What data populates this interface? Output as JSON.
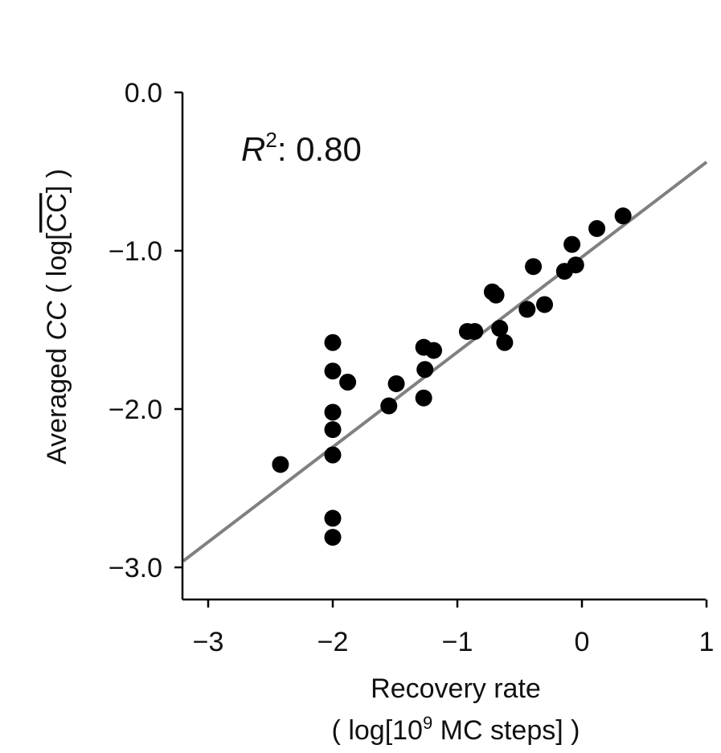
{
  "chart_data": {
    "type": "scatter",
    "xlabel_line1": "Recovery rate",
    "xlabel_line2_prefix": "( log[10",
    "xlabel_line2_sup": "9",
    "xlabel_line2_suffix": " MC steps] )",
    "ylabel_prefix": "Averaged ",
    "ylabel_italic": "CC",
    "ylabel_mid": " ( log[",
    "ylabel_overline": "CC",
    "ylabel_suffix": "] )",
    "annotation_var": "R",
    "annotation_sup": "2",
    "annotation_value": ": 0.80",
    "xlim": [
      -3.2,
      1.0
    ],
    "ylim": [
      -3.2,
      0.0
    ],
    "xticks": [
      -3,
      -2,
      -1,
      0,
      1
    ],
    "xtick_labels": [
      "−3",
      "−2",
      "−1",
      "0",
      "1"
    ],
    "yticks": [
      0.0,
      -1.0,
      -2.0,
      -3.0
    ],
    "ytick_labels": [
      "0.0",
      "−1.0",
      "−2.0",
      "−3.0"
    ],
    "fit_line": {
      "slope": 0.6,
      "intercept": -1.04
    },
    "point_color": "#000000",
    "line_color": "#808080",
    "points": [
      {
        "x": -2.42,
        "y": -2.35
      },
      {
        "x": -2.0,
        "y": -1.58
      },
      {
        "x": -2.0,
        "y": -1.76
      },
      {
        "x": -2.0,
        "y": -2.02
      },
      {
        "x": -2.0,
        "y": -2.13
      },
      {
        "x": -2.0,
        "y": -2.29
      },
      {
        "x": -2.0,
        "y": -2.69
      },
      {
        "x": -2.0,
        "y": -2.81
      },
      {
        "x": -1.88,
        "y": -1.83
      },
      {
        "x": -1.55,
        "y": -1.98
      },
      {
        "x": -1.49,
        "y": -1.84
      },
      {
        "x": -1.27,
        "y": -1.61
      },
      {
        "x": -1.26,
        "y": -1.75
      },
      {
        "x": -1.27,
        "y": -1.93
      },
      {
        "x": -1.19,
        "y": -1.63
      },
      {
        "x": -0.92,
        "y": -1.51
      },
      {
        "x": -0.86,
        "y": -1.51
      },
      {
        "x": -0.72,
        "y": -1.26
      },
      {
        "x": -0.69,
        "y": -1.28
      },
      {
        "x": -0.66,
        "y": -1.49
      },
      {
        "x": -0.62,
        "y": -1.58
      },
      {
        "x": -0.44,
        "y": -1.37
      },
      {
        "x": -0.39,
        "y": -1.1
      },
      {
        "x": -0.3,
        "y": -1.34
      },
      {
        "x": -0.14,
        "y": -1.13
      },
      {
        "x": -0.08,
        "y": -0.96
      },
      {
        "x": -0.05,
        "y": -1.09
      },
      {
        "x": 0.12,
        "y": -0.86
      },
      {
        "x": 0.33,
        "y": -0.78
      }
    ]
  }
}
